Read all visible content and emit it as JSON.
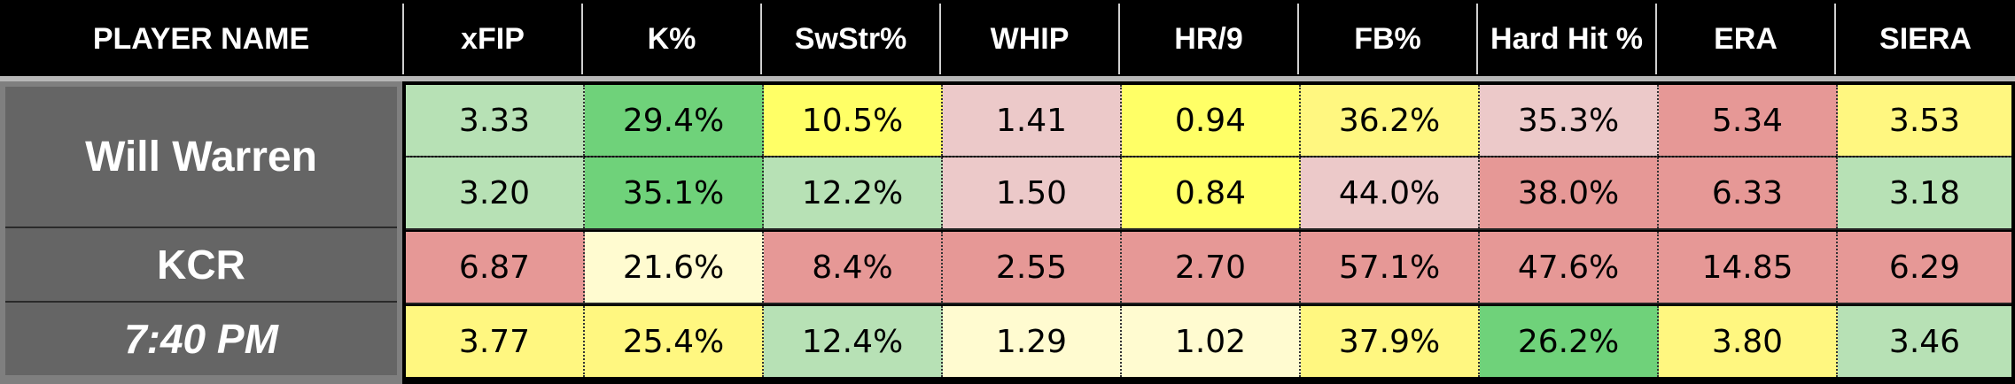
{
  "header": {
    "player_name": "PLAYER NAME",
    "cols": [
      "xFIP",
      "K%",
      "SwStr%",
      "WHIP",
      "HR/9",
      "FB%",
      "Hard Hit %",
      "ERA",
      "SIERA"
    ]
  },
  "player": {
    "name": "Will Warren",
    "team": "KCR",
    "time": "7:40 PM"
  },
  "colors": {
    "light_green": "#b7e1b5",
    "green": "#6fd27a",
    "yellow": "#ffff66",
    "light_yellow": "#fff2a0",
    "cream": "#fffbd0",
    "pink": "#ecc9c9",
    "red": "#e69896"
  },
  "rows": [
    {
      "values": [
        "3.33",
        "29.4%",
        "10.5%",
        "1.41",
        "0.94",
        "36.2%",
        "35.3%",
        "5.34",
        "3.53"
      ],
      "colors": [
        "#b7e1b5",
        "#6fd27a",
        "#ffff66",
        "#ecc9c9",
        "#ffff66",
        "#fff780",
        "#ecc9c9",
        "#e69896",
        "#fff780"
      ]
    },
    {
      "values": [
        "3.20",
        "35.1%",
        "12.2%",
        "1.50",
        "0.84",
        "44.0%",
        "38.0%",
        "6.33",
        "3.18"
      ],
      "colors": [
        "#b7e1b5",
        "#6fd27a",
        "#b7e1b5",
        "#ecc9c9",
        "#ffff66",
        "#ecc9c9",
        "#e69896",
        "#e69896",
        "#b7e1b5"
      ]
    },
    {
      "values": [
        "6.87",
        "21.6%",
        "8.4%",
        "2.55",
        "2.70",
        "57.1%",
        "47.6%",
        "14.85",
        "6.29"
      ],
      "colors": [
        "#e69896",
        "#fffbd0",
        "#e69896",
        "#e69896",
        "#e69896",
        "#e69896",
        "#e69896",
        "#e69896",
        "#e69896"
      ]
    },
    {
      "values": [
        "3.77",
        "25.4%",
        "12.4%",
        "1.29",
        "1.02",
        "37.9%",
        "26.2%",
        "3.80",
        "3.46"
      ],
      "colors": [
        "#fff780",
        "#fff780",
        "#b7e1b5",
        "#fffbd0",
        "#fffbd0",
        "#fff780",
        "#6fd27a",
        "#fff780",
        "#b7e1b5"
      ]
    }
  ]
}
